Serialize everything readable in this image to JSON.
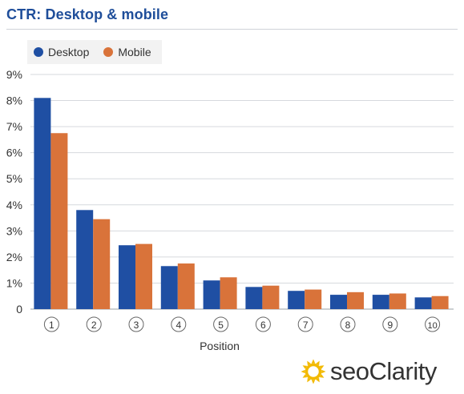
{
  "chart_data": {
    "type": "bar",
    "title": "CTR: Desktop & mobile",
    "xlabel": "Position",
    "ylabel": "",
    "categories": [
      "1",
      "2",
      "3",
      "4",
      "5",
      "6",
      "7",
      "8",
      "9",
      "10"
    ],
    "series": [
      {
        "name": "Desktop",
        "values": [
          8.1,
          3.8,
          2.45,
          1.65,
          1.1,
          0.85,
          0.7,
          0.55,
          0.55,
          0.45
        ]
      },
      {
        "name": "Mobile",
        "values": [
          6.75,
          3.45,
          2.5,
          1.75,
          1.22,
          0.9,
          0.75,
          0.65,
          0.6,
          0.5
        ]
      }
    ],
    "ylim": [
      0,
      9
    ],
    "yticks": [
      "0",
      "1%",
      "2%",
      "3%",
      "4%",
      "5%",
      "6%",
      "7%",
      "8%",
      "9%"
    ],
    "legend_position": "top-left",
    "grid": true,
    "colors": {
      "Desktop": "#1f4fa3",
      "Mobile": "#d9733a"
    }
  },
  "brand": {
    "logo_text": "seoClarity",
    "icon": "sun-icon",
    "title_color": "#1f4e9a"
  }
}
